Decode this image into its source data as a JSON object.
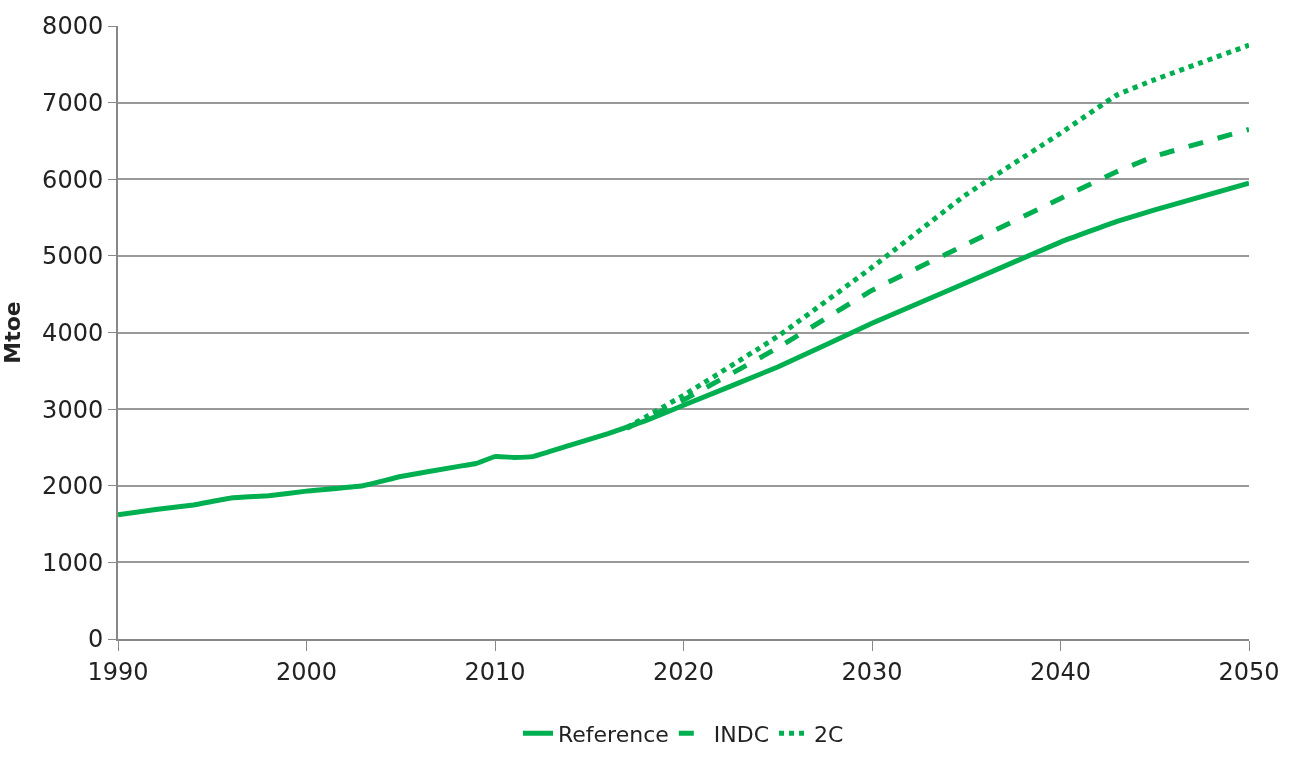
{
  "chart_data": {
    "type": "line",
    "ylabel": "Mtoe",
    "xlim": [
      1990,
      2050
    ],
    "xticks": [
      1990,
      2000,
      2010,
      2020,
      2030,
      2040,
      2050
    ],
    "ylim": [
      0,
      8000
    ],
    "yticks": [
      0,
      1000,
      2000,
      3000,
      4000,
      5000,
      6000,
      7000,
      8000
    ],
    "grid": "y",
    "legend": "bottom",
    "series": [
      {
        "name": "Reference",
        "color": "#00b050",
        "line_style": "solid",
        "x": [
          1990,
          1992,
          1994,
          1996,
          1998,
          2000,
          2003,
          2005,
          2008,
          2009,
          2010,
          2011,
          2012,
          2014,
          2016,
          2018,
          2020,
          2025,
          2030,
          2035,
          2040,
          2043,
          2045,
          2050
        ],
        "values": [
          1620,
          1690,
          1750,
          1840,
          1870,
          1930,
          2000,
          2120,
          2250,
          2290,
          2380,
          2370,
          2380,
          2530,
          2680,
          2850,
          3050,
          3550,
          4120,
          4650,
          5180,
          5450,
          5600,
          5950
        ]
      },
      {
        "name": "INDC",
        "color": "#00b050",
        "line_style": "dashed",
        "x": [
          2017,
          2020,
          2025,
          2030,
          2035,
          2040,
          2043,
          2045,
          2050
        ],
        "values": [
          2750,
          3120,
          3800,
          4550,
          5150,
          5750,
          6100,
          6300,
          6650
        ]
      },
      {
        "name": "2C",
        "color": "#00b050",
        "line_style": "dotted",
        "x": [
          2017,
          2020,
          2025,
          2030,
          2035,
          2040,
          2043,
          2045,
          2050
        ],
        "values": [
          2760,
          3180,
          3950,
          4850,
          5800,
          6600,
          7100,
          7300,
          7750
        ]
      }
    ]
  }
}
